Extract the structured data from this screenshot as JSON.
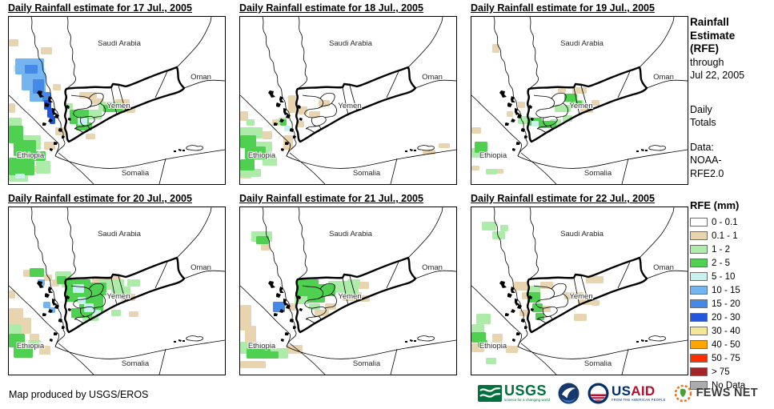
{
  "panels": [
    {
      "title": "Daily Rainfall estimate for 17 Jul., 2005",
      "patches": [
        [
          0,
          28,
          12,
          9,
          "tan"
        ],
        [
          40,
          38,
          14,
          9,
          "tan"
        ],
        [
          55,
          84,
          10,
          8,
          "tan"
        ],
        [
          88,
          94,
          22,
          8,
          "tan"
        ],
        [
          102,
          102,
          16,
          7,
          "tan"
        ],
        [
          133,
          103,
          18,
          8,
          "tan"
        ],
        [
          146,
          112,
          12,
          8,
          "tan"
        ],
        [
          58,
          138,
          14,
          10,
          "tan"
        ],
        [
          44,
          156,
          14,
          10,
          "tan"
        ],
        [
          0,
          108,
          8,
          12,
          "tan"
        ],
        [
          30,
          186,
          16,
          8,
          "tan"
        ],
        [
          96,
          146,
          12,
          7,
          "tan"
        ],
        [
          98,
          116,
          18,
          12,
          "light_green"
        ],
        [
          112,
          106,
          28,
          12,
          "light_green"
        ],
        [
          136,
          112,
          10,
          8,
          "light_green"
        ],
        [
          0,
          126,
          16,
          12,
          "light_green"
        ],
        [
          18,
          148,
          22,
          18,
          "light_green"
        ],
        [
          34,
          180,
          18,
          16,
          "light_green"
        ],
        [
          0,
          198,
          24,
          8,
          "light_green"
        ],
        [
          70,
          108,
          10,
          8,
          "light_green"
        ],
        [
          76,
          116,
          24,
          18,
          "green"
        ],
        [
          84,
          132,
          20,
          10,
          "green"
        ],
        [
          118,
          110,
          24,
          9,
          "green"
        ],
        [
          0,
          136,
          18,
          22,
          "green"
        ],
        [
          6,
          154,
          28,
          20,
          "green"
        ],
        [
          0,
          176,
          32,
          22,
          "green"
        ],
        [
          30,
          168,
          16,
          12,
          "green"
        ],
        [
          6,
          60,
          10,
          9,
          "cyan"
        ],
        [
          34,
          64,
          12,
          8,
          "cyan"
        ],
        [
          86,
          126,
          12,
          9,
          "cyan"
        ],
        [
          8,
          196,
          12,
          6,
          "cyan"
        ],
        [
          8,
          52,
          36,
          20,
          "light_blue"
        ],
        [
          16,
          70,
          30,
          22,
          "light_blue"
        ],
        [
          26,
          90,
          20,
          16,
          "light_blue"
        ],
        [
          20,
          60,
          16,
          11,
          "medium_blue"
        ],
        [
          30,
          78,
          14,
          18,
          "medium_blue"
        ],
        [
          42,
          94,
          10,
          12,
          "medium_blue"
        ],
        [
          44,
          104,
          9,
          12,
          "blue"
        ],
        [
          48,
          114,
          8,
          12,
          "blue"
        ],
        [
          51,
          124,
          7,
          10,
          "blue"
        ]
      ]
    },
    {
      "title": "Daily Rainfall estimate for 18 Jul., 2005",
      "patches": [
        [
          0,
          118,
          10,
          12,
          "tan"
        ],
        [
          28,
          143,
          12,
          10,
          "tan"
        ],
        [
          54,
          148,
          12,
          18,
          "tan"
        ],
        [
          60,
          98,
          12,
          22,
          "tan"
        ],
        [
          72,
          112,
          12,
          10,
          "tan"
        ],
        [
          86,
          118,
          14,
          8,
          "tan"
        ],
        [
          98,
          104,
          14,
          8,
          "tan"
        ],
        [
          40,
          128,
          10,
          8,
          "tan"
        ],
        [
          228,
          166,
          16,
          6,
          "tan"
        ],
        [
          248,
          158,
          14,
          6,
          "tan"
        ],
        [
          70,
          130,
          10,
          8,
          "tan"
        ],
        [
          0,
          196,
          14,
          6,
          "tan"
        ],
        [
          0,
          138,
          28,
          14,
          "light_green"
        ],
        [
          16,
          156,
          24,
          20,
          "light_green"
        ],
        [
          28,
          174,
          18,
          12,
          "light_green"
        ],
        [
          0,
          190,
          26,
          10,
          "light_green"
        ],
        [
          48,
          126,
          10,
          9,
          "light_green"
        ],
        [
          8,
          128,
          10,
          8,
          "light_green"
        ],
        [
          0,
          148,
          20,
          16,
          "green"
        ],
        [
          6,
          162,
          26,
          16,
          "green"
        ],
        [
          0,
          178,
          18,
          14,
          "green"
        ],
        [
          50,
          128,
          8,
          8,
          "green"
        ],
        [
          55,
          136,
          8,
          7,
          "cyan"
        ]
      ]
    },
    {
      "title": "Daily Rainfall estimate for 19 Jul., 2005",
      "patches": [
        [
          26,
          34,
          9,
          11,
          "tan"
        ],
        [
          126,
          88,
          18,
          8,
          "tan"
        ],
        [
          136,
          110,
          16,
          10,
          "tan"
        ],
        [
          0,
          138,
          12,
          8,
          "tan"
        ],
        [
          58,
          106,
          9,
          8,
          "tan"
        ],
        [
          44,
          118,
          8,
          7,
          "tan"
        ],
        [
          108,
          88,
          10,
          7,
          "tan"
        ],
        [
          150,
          104,
          10,
          7,
          "tan"
        ],
        [
          0,
          186,
          10,
          6,
          "tan"
        ],
        [
          30,
          190,
          10,
          6,
          "tan"
        ],
        [
          104,
          110,
          20,
          9,
          "light_green"
        ],
        [
          58,
          124,
          16,
          10,
          "light_green"
        ],
        [
          98,
          128,
          14,
          9,
          "light_green"
        ],
        [
          114,
          123,
          12,
          8,
          "light_green"
        ],
        [
          0,
          164,
          14,
          12,
          "light_green"
        ],
        [
          18,
          190,
          14,
          7,
          "light_green"
        ],
        [
          130,
          104,
          10,
          7,
          "light_green"
        ],
        [
          116,
          96,
          16,
          10,
          "green"
        ],
        [
          124,
          105,
          14,
          8,
          "green"
        ],
        [
          70,
          126,
          18,
          10,
          "green"
        ],
        [
          84,
          130,
          22,
          9,
          "green"
        ],
        [
          4,
          156,
          16,
          14,
          "green"
        ],
        [
          75,
          130,
          9,
          7,
          "cyan"
        ]
      ]
    },
    {
      "title": "Daily Rainfall estimate for 20 Jul., 2005",
      "patches": [
        [
          0,
          126,
          18,
          24,
          "tan"
        ],
        [
          12,
          138,
          16,
          20,
          "tan"
        ],
        [
          18,
          78,
          16,
          9,
          "tan"
        ],
        [
          44,
          84,
          10,
          8,
          "tan"
        ],
        [
          104,
          86,
          36,
          8,
          "tan"
        ],
        [
          140,
          108,
          18,
          9,
          "tan"
        ],
        [
          26,
          158,
          12,
          9,
          "tan"
        ],
        [
          38,
          173,
          14,
          11,
          "tan"
        ],
        [
          54,
          90,
          9,
          9,
          "tan"
        ],
        [
          150,
          130,
          12,
          7,
          "tan"
        ],
        [
          0,
          104,
          8,
          10,
          "tan"
        ],
        [
          112,
          90,
          32,
          13,
          "light_green"
        ],
        [
          128,
          99,
          24,
          11,
          "light_green"
        ],
        [
          58,
          80,
          20,
          11,
          "light_green"
        ],
        [
          92,
          133,
          20,
          9,
          "light_green"
        ],
        [
          0,
          146,
          16,
          13,
          "light_green"
        ],
        [
          24,
          166,
          16,
          11,
          "light_green"
        ],
        [
          128,
          128,
          12,
          8,
          "light_green"
        ],
        [
          148,
          90,
          16,
          9,
          "light_green"
        ],
        [
          66,
          92,
          10,
          8,
          "light_green"
        ],
        [
          70,
          90,
          32,
          28,
          "green"
        ],
        [
          88,
          110,
          30,
          22,
          "green"
        ],
        [
          100,
          94,
          22,
          16,
          "green"
        ],
        [
          78,
          126,
          26,
          12,
          "green"
        ],
        [
          26,
          76,
          18,
          11,
          "green"
        ],
        [
          0,
          158,
          20,
          17,
          "green"
        ],
        [
          6,
          173,
          24,
          15,
          "green"
        ],
        [
          60,
          86,
          12,
          10,
          "green"
        ],
        [
          80,
          96,
          14,
          11,
          "cyan"
        ],
        [
          94,
          120,
          12,
          11,
          "cyan"
        ],
        [
          106,
          128,
          9,
          8,
          "cyan"
        ],
        [
          86,
          112,
          10,
          9,
          "cyan"
        ],
        [
          36,
          90,
          9,
          8,
          "light_blue"
        ],
        [
          43,
          118,
          9,
          8,
          "light_blue"
        ],
        [
          50,
          125,
          8,
          7,
          "light_blue"
        ]
      ]
    },
    {
      "title": "Daily Rainfall estimate for 21 Jul., 2005",
      "patches": [
        [
          0,
          122,
          14,
          32,
          "tan"
        ],
        [
          6,
          148,
          14,
          26,
          "tan"
        ],
        [
          128,
          106,
          24,
          11,
          "tan"
        ],
        [
          143,
          93,
          18,
          9,
          "tan"
        ],
        [
          58,
          172,
          20,
          11,
          "tan"
        ],
        [
          0,
          192,
          32,
          9,
          "tan"
        ],
        [
          93,
          128,
          18,
          8,
          "tan"
        ],
        [
          148,
          110,
          14,
          8,
          "tan"
        ],
        [
          26,
          46,
          11,
          8,
          "tan"
        ],
        [
          60,
          120,
          10,
          9,
          "tan"
        ],
        [
          106,
          120,
          14,
          8,
          "tan"
        ],
        [
          110,
          92,
          28,
          15,
          "light_green"
        ],
        [
          128,
          98,
          20,
          11,
          "light_green"
        ],
        [
          68,
          110,
          18,
          11,
          "light_green"
        ],
        [
          14,
          30,
          26,
          13,
          "light_green"
        ],
        [
          0,
          168,
          22,
          15,
          "light_green"
        ],
        [
          38,
          176,
          22,
          13,
          "light_green"
        ],
        [
          134,
          90,
          16,
          9,
          "light_green"
        ],
        [
          86,
          120,
          14,
          8,
          "light_green"
        ],
        [
          70,
          90,
          28,
          21,
          "green"
        ],
        [
          93,
          96,
          26,
          15,
          "green"
        ],
        [
          84,
          110,
          22,
          9,
          "green"
        ],
        [
          8,
          176,
          30,
          13,
          "green"
        ],
        [
          28,
          180,
          20,
          9,
          "green"
        ],
        [
          20,
          36,
          16,
          10,
          "green"
        ],
        [
          41,
          118,
          15,
          13,
          "medium_blue"
        ]
      ]
    },
    {
      "title": "Daily Rainfall estimate for 22 Jul., 2005",
      "patches": [
        [
          53,
          93,
          18,
          11,
          "tan"
        ],
        [
          63,
          106,
          11,
          9,
          "tan"
        ],
        [
          86,
          93,
          16,
          9,
          "tan"
        ],
        [
          116,
          106,
          24,
          9,
          "tan"
        ],
        [
          133,
          114,
          18,
          8,
          "tan"
        ],
        [
          143,
          86,
          22,
          9,
          "tan"
        ],
        [
          128,
          133,
          16,
          9,
          "tan"
        ],
        [
          0,
          170,
          16,
          11,
          "tan"
        ],
        [
          26,
          158,
          13,
          11,
          "tan"
        ],
        [
          43,
          173,
          15,
          9,
          "tan"
        ],
        [
          88,
          123,
          11,
          8,
          "tan"
        ],
        [
          60,
          128,
          10,
          8,
          "tan"
        ],
        [
          150,
          116,
          10,
          7,
          "tan"
        ],
        [
          13,
          18,
          18,
          11,
          "light_green"
        ],
        [
          26,
          30,
          16,
          10,
          "light_green"
        ],
        [
          6,
          133,
          18,
          13,
          "light_green"
        ],
        [
          0,
          146,
          16,
          13,
          "light_green"
        ],
        [
          73,
          98,
          13,
          11,
          "light_green"
        ],
        [
          18,
          188,
          13,
          8,
          "light_green"
        ],
        [
          36,
          22,
          10,
          8,
          "light_green"
        ],
        [
          70,
          106,
          16,
          13,
          "green"
        ],
        [
          76,
          120,
          13,
          11,
          "green"
        ],
        [
          80,
          132,
          11,
          9,
          "green"
        ],
        [
          0,
          156,
          18,
          13,
          "green"
        ],
        [
          8,
          166,
          12,
          9,
          "green"
        ]
      ]
    }
  ],
  "map": {
    "country_labels": [
      "Saudi Arabia",
      "Oman",
      "Yemen",
      "Ethiopia",
      "Somalia"
    ],
    "palette": {
      "tan": "#E8D5B0",
      "light_green": "#ACEBA8",
      "green": "#50D050",
      "cyan": "#C8F2F0",
      "light_blue": "#74B4F0",
      "medium_blue": "#4488E8",
      "blue": "#2255DD"
    }
  },
  "sidebar": {
    "title": "Rainfall Estimate (RFE)",
    "through": "through",
    "date": "Jul 22, 2005",
    "period_line1": "Daily",
    "period_line2": "Totals",
    "data_label": "Data:",
    "data_source_line1": "NOAA-",
    "data_source_line2": "RFE2.0"
  },
  "legend": {
    "title": "RFE (mm)",
    "items": [
      {
        "label": "0 - 0.1",
        "color": "#FFFFFF"
      },
      {
        "label": "0.1 - 1",
        "color": "#E8D5B0"
      },
      {
        "label": "1 - 2",
        "color": "#ACEBA8"
      },
      {
        "label": "2 - 5",
        "color": "#50D050"
      },
      {
        "label": "5 - 10",
        "color": "#C8F2F0"
      },
      {
        "label": "10 - 15",
        "color": "#74B4F0"
      },
      {
        "label": "15 - 20",
        "color": "#4488E8"
      },
      {
        "label": "20 - 30",
        "color": "#2255DD"
      },
      {
        "label": "30 - 40",
        "color": "#F6E795"
      },
      {
        "label": "40 - 50",
        "color": "#FFA500"
      },
      {
        "label": "50 - 75",
        "color": "#FF2D00"
      },
      {
        "label": "> 75",
        "color": "#A02428"
      },
      {
        "label": "No Data",
        "color": "#ABABAB"
      }
    ]
  },
  "footer": {
    "credit": "Map produced by USGS/EROS",
    "logos": {
      "usgs": {
        "name": "USGS",
        "tagline": "science for a changing world"
      },
      "noaa": {
        "name": "NOAA"
      },
      "usaid": {
        "name_us": "US",
        "name_aid": "AID",
        "tagline": "FROM THE AMERICAN PEOPLE"
      },
      "fewsnet": {
        "name": "FEWS NET"
      }
    }
  }
}
